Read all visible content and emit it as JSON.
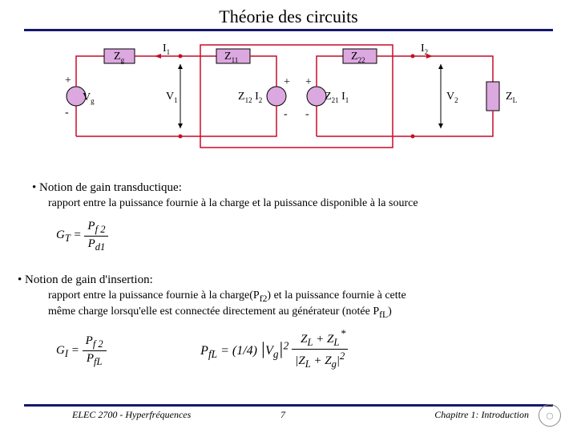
{
  "meta": {
    "title": "Théorie des circuits",
    "rule_color": "#17176f",
    "page_number": "7",
    "footer_left": "ELEC 2700 - Hyperfréquences",
    "footer_right": "Chapitre 1: Introduction"
  },
  "circuit": {
    "wire_color": "#c80b28",
    "box_fill": "#dca8e0",
    "box_stroke": "#000000",
    "source_fill": "#dca8e0",
    "load_fill": "#dca8e0",
    "text_color": "#000000",
    "labels": {
      "Zg": "Z",
      "Zg_sub": "g",
      "I1": "I",
      "I1_sub": "1",
      "Z11": "Z",
      "Z11_sub": "11",
      "Z22": "Z",
      "Z22_sub": "22",
      "I2": "I",
      "I2_sub": "2",
      "Vg": "V",
      "Vg_sub": "g",
      "V1": "V",
      "V1_sub": "1",
      "Z12I2_a": "Z",
      "Z12I2_asub": "12",
      "Z12I2_b": "I",
      "Z12I2_bsub": "2",
      "Z21I1_a": "Z",
      "Z21I1_asub": "21",
      "Z21I1_b": "I",
      "Z21I1_bsub": "1",
      "V2": "V",
      "V2_sub": "2",
      "ZL": "Z",
      "ZL_sub": "L",
      "plus": "+",
      "minus": "-"
    }
  },
  "text": {
    "b1_head": "• Notion de gain transductique:",
    "b1_sub": "rapport entre la puissance fournie à la charge et la puissance disponible à la source",
    "b2_head": "•  Notion de gain d'insertion:",
    "b2_sub1": "rapport entre la puissance fournie à la charge(P",
    "b2_sub1_s": "f2",
    "b2_sub1b": ") et la puissance fournie à cette",
    "b2_sub2": "même charge lorsqu'elle est connectée directement au générateur (notée P",
    "b2_sub2_s": "fL",
    "b2_sub2b": ")"
  },
  "formulas": {
    "GT_lhs": "G",
    "GT_sub": "T",
    "GT_num_a": "P",
    "GT_num_s": "f 2",
    "GT_den_a": "P",
    "GT_den_s": "d1",
    "GI_lhs": "G",
    "GI_sub": "I",
    "GI_num_a": "P",
    "GI_num_s": "f 2",
    "GI_den_a": "P",
    "GI_den_s": "fL",
    "PfL_lhs_a": "P",
    "PfL_lhs_s": "fL",
    "PfL_c": "= (1/4)",
    "PfL_Vg": "V",
    "PfL_Vg_s": "g",
    "PfL_ZL": "Z",
    "PfL_ZL_s": "L",
    "PfL_Zg": "Z",
    "PfL_Zg_s": "g"
  }
}
